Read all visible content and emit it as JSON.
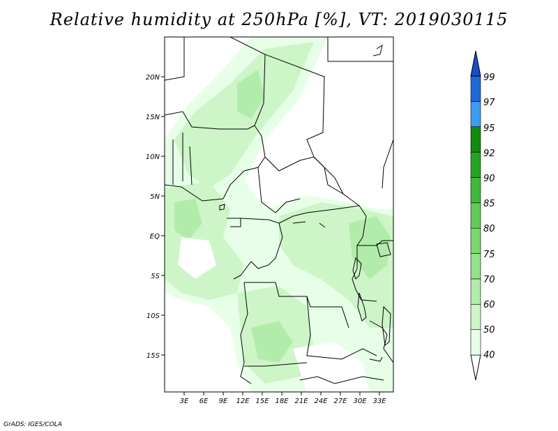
{
  "title": "Relative humidity at 250hPa [%], VT: 2019030115",
  "credit": "GrADS: IGES/COLA",
  "lat_ticks": [
    "20N",
    "15N",
    "10N",
    "5N",
    "EQ",
    "5S",
    "10S",
    "15S"
  ],
  "lon_ticks": [
    "3E",
    "6E",
    "9E",
    "12E",
    "15E",
    "18E",
    "21E",
    "24E",
    "27E",
    "30E",
    "33E"
  ],
  "colorbar": {
    "levels": [
      "40",
      "50",
      "60",
      "70",
      "75",
      "80",
      "85",
      "90",
      "92",
      "95",
      "97",
      "99"
    ],
    "colors": [
      "#ffffff",
      "#e6ffe6",
      "#cdf5c8",
      "#b2ecaa",
      "#94e28a",
      "#7ad86f",
      "#5fcd55",
      "#3fb83a",
      "#24a421",
      "#0f8b0e",
      "#3c9cf0",
      "#1e69d8",
      "#1650c4"
    ]
  },
  "map": {
    "region": "Central Africa",
    "lon_range": [
      0,
      35
    ],
    "lat_range": [
      -20,
      25
    ]
  }
}
